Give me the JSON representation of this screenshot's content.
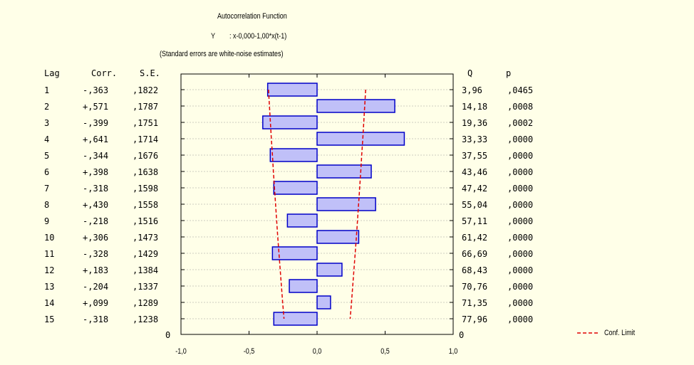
{
  "header": {
    "title": "Autocorrelation Function",
    "var_name": "Y",
    "var_expr": ": x-0,000-1,00*x(t-1)",
    "note": "(Standard errors are white-noise estimates)"
  },
  "columns": {
    "lag": "Lag",
    "corr": "Corr.",
    "se": "S.E.",
    "q": "Q",
    "p": "p"
  },
  "rows": [
    {
      "lag": "1",
      "corr": "-,363",
      "se": ",1822",
      "q": "3,96",
      "p": ",0465"
    },
    {
      "lag": "2",
      "corr": "+,571",
      "se": ",1787",
      "q": "14,18",
      "p": ",0008"
    },
    {
      "lag": "3",
      "corr": "-,399",
      "se": ",1751",
      "q": "19,36",
      "p": ",0002"
    },
    {
      "lag": "4",
      "corr": "+,641",
      "se": ",1714",
      "q": "33,33",
      "p": ",0000"
    },
    {
      "lag": "5",
      "corr": "-,344",
      "se": ",1676",
      "q": "37,55",
      "p": ",0000"
    },
    {
      "lag": "6",
      "corr": "+,398",
      "se": ",1638",
      "q": "43,46",
      "p": ",0000"
    },
    {
      "lag": "7",
      "corr": "-,318",
      "se": ",1598",
      "q": "47,42",
      "p": ",0000"
    },
    {
      "lag": "8",
      "corr": "+,430",
      "se": ",1558",
      "q": "55,04",
      "p": ",0000"
    },
    {
      "lag": "9",
      "corr": "-,218",
      "se": ",1516",
      "q": "57,11",
      "p": ",0000"
    },
    {
      "lag": "10",
      "corr": "+,306",
      "se": ",1473",
      "q": "61,42",
      "p": ",0000"
    },
    {
      "lag": "11",
      "corr": "-,328",
      "se": ",1429",
      "q": "66,69",
      "p": ",0000"
    },
    {
      "lag": "12",
      "corr": "+,183",
      "se": ",1384",
      "q": "68,43",
      "p": ",0000"
    },
    {
      "lag": "13",
      "corr": "-,204",
      "se": ",1337",
      "q": "70,76",
      "p": ",0000"
    },
    {
      "lag": "14",
      "corr": "+,099",
      "se": ",1289",
      "q": "71,35",
      "p": ",0000"
    },
    {
      "lag": "15",
      "corr": "-,318",
      "se": ",1238",
      "q": "77,96",
      "p": ",0000"
    }
  ],
  "zero_left": "0",
  "zero_right": "0",
  "legend": {
    "label": "Conf. Limit"
  },
  "colors": {
    "background": "#ffffe8",
    "bar_fill": "#c0c0f8",
    "bar_stroke": "#0000c8",
    "conf_line": "#e00000",
    "grid": "#999999"
  },
  "chart_data": {
    "type": "bar",
    "orientation": "horizontal",
    "categories": [
      "1",
      "2",
      "3",
      "4",
      "5",
      "6",
      "7",
      "8",
      "9",
      "10",
      "11",
      "12",
      "13",
      "14",
      "15"
    ],
    "values": [
      -0.363,
      0.571,
      -0.399,
      0.641,
      -0.344,
      0.398,
      -0.318,
      0.43,
      -0.218,
      0.306,
      -0.328,
      0.183,
      -0.204,
      0.099,
      -0.318
    ],
    "conf_limit": [
      0.357,
      0.35,
      0.343,
      0.336,
      0.328,
      0.321,
      0.313,
      0.305,
      0.297,
      0.289,
      0.28,
      0.271,
      0.262,
      0.253,
      0.243
    ],
    "xlim": [
      -1.0,
      1.0
    ],
    "xticks": [
      "-1,0",
      "-0,5",
      "0,0",
      "0,5",
      "1,0"
    ],
    "xtick_values": [
      -1.0,
      -0.5,
      0.0,
      0.5,
      1.0
    ],
    "grid": true,
    "legend_position": "bottom-right"
  }
}
